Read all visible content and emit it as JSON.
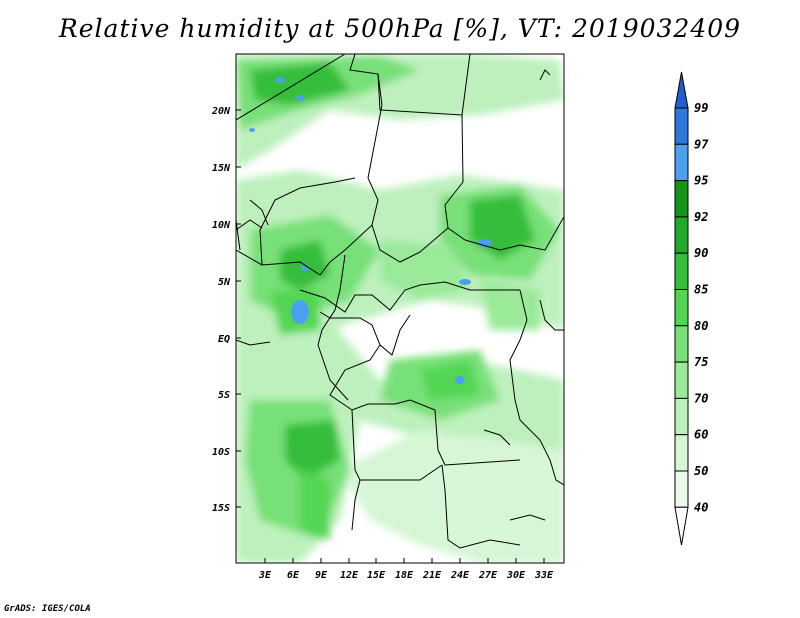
{
  "title": "Relative humidity at 500hPa [%], VT: 2019032409",
  "credit": "GrADS: IGES/COLA",
  "map": {
    "lon_ticks": [
      "3E",
      "6E",
      "9E",
      "12E",
      "15E",
      "18E",
      "21E",
      "24E",
      "27E",
      "30E",
      "33E"
    ],
    "lat_ticks": [
      "20N",
      "15N",
      "10N",
      "5N",
      "EQ",
      "5S",
      "10S",
      "15S"
    ],
    "land_color": "#ffffff",
    "border_color": "#000000"
  },
  "colorbar": {
    "levels": [
      "99",
      "97",
      "95",
      "92",
      "90",
      "85",
      "80",
      "75",
      "70",
      "60",
      "50",
      "40"
    ],
    "colors": {
      "gt99": "#1e5fcc",
      "97-99": "#2d78dc",
      "95-97": "#4ca0ee",
      "92-95": "#13951a",
      "90-92": "#22a82a",
      "85-90": "#35be3a",
      "80-85": "#52d652",
      "75-80": "#78e078",
      "70-75": "#9aea9a",
      "60-70": "#bdf0bd",
      "50-60": "#d6f6d6",
      "40-50": "#ebfbeb",
      "lt40": "#ffffff"
    }
  }
}
